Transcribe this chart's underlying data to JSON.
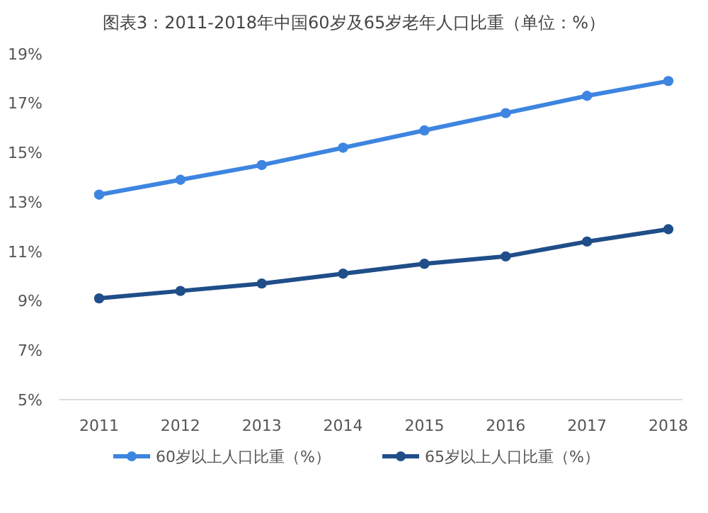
{
  "chart_data": {
    "type": "line",
    "title": "图表3：2011-2018年中国60岁及65岁老年人口比重（单位：%）",
    "categories": [
      "2011",
      "2012",
      "2013",
      "2014",
      "2015",
      "2016",
      "2017",
      "2018"
    ],
    "series": [
      {
        "name": "60岁以上人口比重（%）",
        "color": "#3d85e0",
        "values": [
          13.3,
          13.9,
          14.5,
          15.2,
          15.9,
          16.6,
          17.3,
          17.9
        ]
      },
      {
        "name": "65岁以上人口比重（%）",
        "color": "#1f4e89",
        "values": [
          9.1,
          9.4,
          9.7,
          10.1,
          10.5,
          10.8,
          11.4,
          11.9
        ]
      }
    ],
    "ylim": [
      5,
      19
    ],
    "yticks": [
      {
        "value": 5,
        "label": "5%"
      },
      {
        "value": 7,
        "label": "7%"
      },
      {
        "value": 9,
        "label": "9%"
      },
      {
        "value": 11,
        "label": "11%"
      },
      {
        "value": 13,
        "label": "13%"
      },
      {
        "value": 15,
        "label": "15%"
      },
      {
        "value": 17,
        "label": "17%"
      },
      {
        "value": 19,
        "label": "19%"
      }
    ],
    "grid": false,
    "legend": "bottom",
    "marker": "circle",
    "line_style": "solid"
  }
}
